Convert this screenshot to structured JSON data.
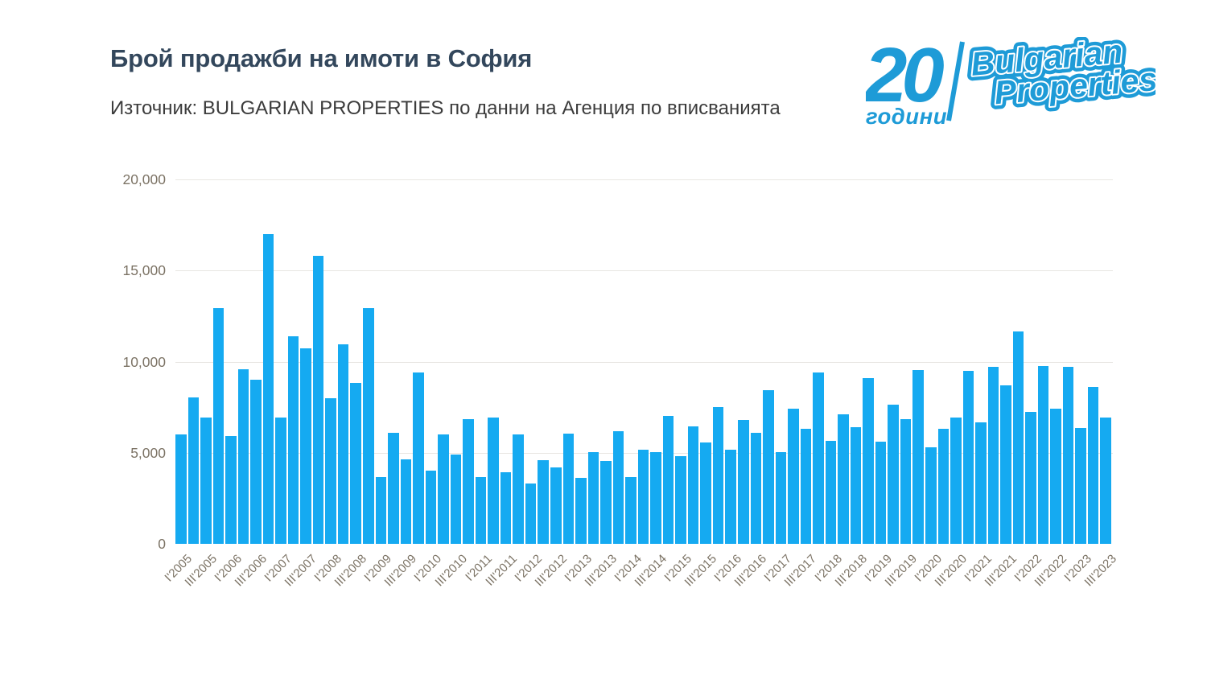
{
  "title": "Брой продажби на имоти в София",
  "subtitle": "Източник: BULGARIAN PROPERTIES по данни на Агенция по вписванията",
  "logo": {
    "number": "20",
    "years_word": "години",
    "brand_line1": "Bulgarian",
    "brand_line2": "Properties",
    "color": "#1e9bd7"
  },
  "colors": {
    "bar": "#15aaf1",
    "title": "#33475c",
    "subtitle": "#3c3c3c",
    "axis_label": "#7c7365",
    "gridline": "#e8e6e2",
    "background": "#ffffff"
  },
  "chart_data": {
    "type": "bar",
    "title": "Брой продажби на имоти в София",
    "xlabel": "",
    "ylabel": "",
    "ylim": [
      0,
      20000
    ],
    "grid": "horizontal",
    "legend": "none",
    "bar_color": "#15aaf1",
    "y_ticks": [
      0,
      5000,
      10000,
      15000,
      20000
    ],
    "y_tick_labels": [
      "0",
      "5,000",
      "10,000",
      "15,000",
      "20,000"
    ],
    "x_tick_every": 2,
    "x_tick_labels": [
      "I'2005",
      "III'2005",
      "I'2006",
      "III'2006",
      "I'2007",
      "III'2007",
      "I'2008",
      "III'2008",
      "I'2009",
      "III'2009",
      "I'2010",
      "III'2010",
      "I'2011",
      "III'2011",
      "I'2012",
      "III'2012",
      "I'2013",
      "III'2013",
      "I'2014",
      "III'2014",
      "I'2015",
      "III'2015",
      "I'2016",
      "III'2016",
      "I'2017",
      "III'2017",
      "I'2018",
      "III'2018",
      "I'2019",
      "III'2019",
      "I'2020",
      "III'2020",
      "I'2021",
      "III'2021",
      "I'2022",
      "III'2022",
      "I'2023",
      "III'2023"
    ],
    "categories": [
      "I'2005",
      "II'2005",
      "III'2005",
      "IV'2005",
      "I'2006",
      "II'2006",
      "III'2006",
      "IV'2006",
      "I'2007",
      "II'2007",
      "III'2007",
      "IV'2007",
      "I'2008",
      "II'2008",
      "III'2008",
      "IV'2008",
      "I'2009",
      "II'2009",
      "III'2009",
      "IV'2009",
      "I'2010",
      "II'2010",
      "III'2010",
      "IV'2010",
      "I'2011",
      "II'2011",
      "III'2011",
      "IV'2011",
      "I'2012",
      "II'2012",
      "III'2012",
      "IV'2012",
      "I'2013",
      "II'2013",
      "III'2013",
      "IV'2013",
      "I'2014",
      "II'2014",
      "III'2014",
      "IV'2014",
      "I'2015",
      "II'2015",
      "III'2015",
      "IV'2015",
      "I'2016",
      "II'2016",
      "III'2016",
      "IV'2016",
      "I'2017",
      "II'2017",
      "III'2017",
      "IV'2017",
      "I'2018",
      "II'2018",
      "III'2018",
      "IV'2018",
      "I'2019",
      "II'2019",
      "III'2019",
      "IV'2019",
      "I'2020",
      "II'2020",
      "III'2020",
      "IV'2020",
      "I'2021",
      "II'2021",
      "III'2021",
      "IV'2021",
      "I'2022",
      "II'2022",
      "III'2022",
      "IV'2022",
      "I'2023",
      "II'2023",
      "III'2023"
    ],
    "values": [
      6000,
      8050,
      6950,
      12950,
      5900,
      9600,
      9000,
      17000,
      6950,
      11400,
      10750,
      15800,
      8000,
      10950,
      8850,
      12950,
      3650,
      6100,
      4650,
      9400,
      4000,
      6000,
      4900,
      6850,
      3650,
      6950,
      3950,
      6000,
      3300,
      4600,
      4200,
      6050,
      3600,
      5050,
      4550,
      6200,
      3650,
      5150,
      5050,
      7000,
      4800,
      6450,
      5550,
      7500,
      5150,
      6800,
      6100,
      8450,
      5050,
      7400,
      6300,
      9400,
      5650,
      7100,
      6400,
      9100,
      5600,
      7650,
      6850,
      9550,
      5300,
      6300,
      6950,
      9500,
      6650,
      9700,
      8700,
      11650,
      7250,
      9750,
      7400,
      9700,
      6350,
      8600,
      6950
    ]
  }
}
